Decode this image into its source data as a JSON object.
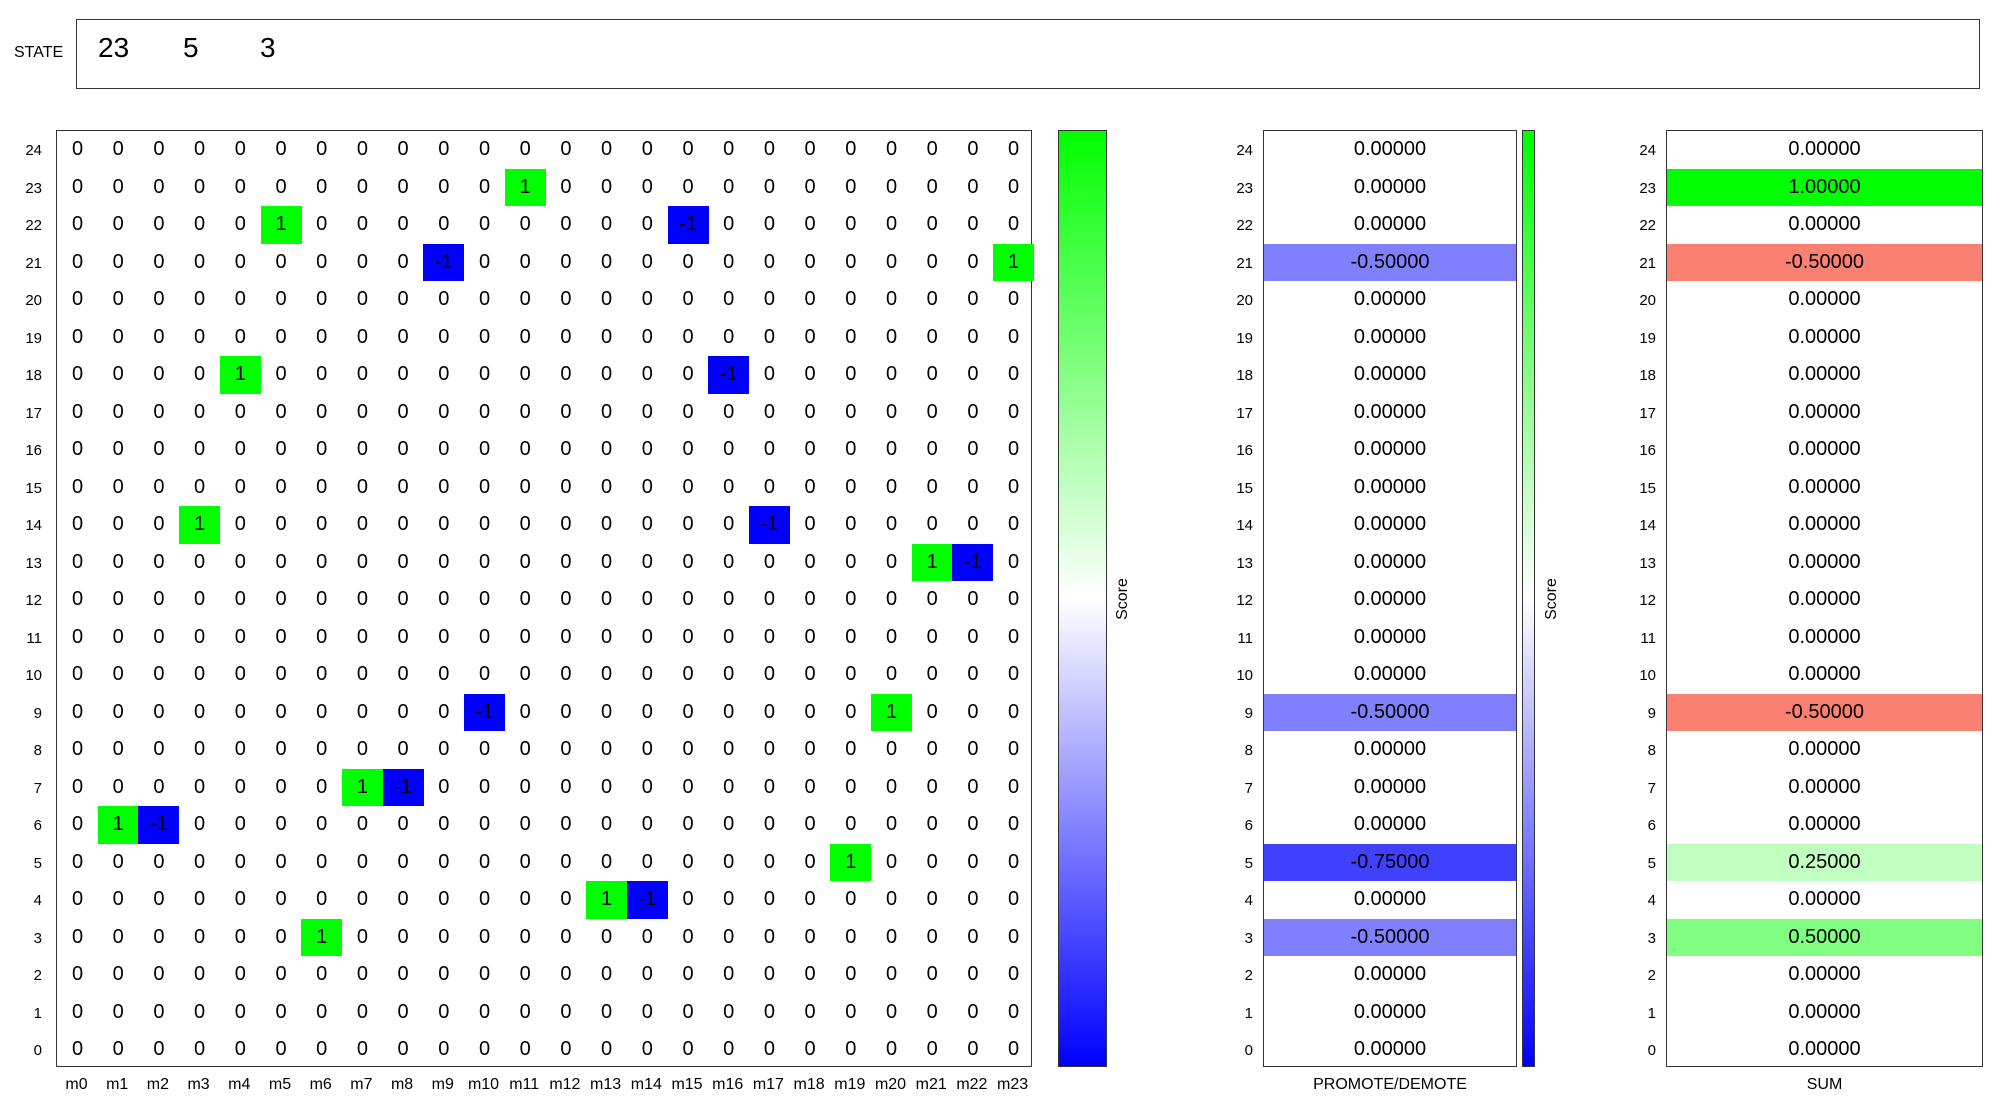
{
  "state": {
    "label": "STATE",
    "values": [
      "23",
      "5",
      "3"
    ]
  },
  "matrix": {
    "columns": [
      "m0",
      "m1",
      "m2",
      "m3",
      "m4",
      "m5",
      "m6",
      "m7",
      "m8",
      "m9",
      "m10",
      "m11",
      "m12",
      "m13",
      "m14",
      "m15",
      "m16",
      "m17",
      "m18",
      "m19",
      "m20",
      "m21",
      "m22",
      "m23"
    ],
    "rows": [
      24,
      23,
      22,
      21,
      20,
      19,
      18,
      17,
      16,
      15,
      14,
      13,
      12,
      11,
      10,
      9,
      8,
      7,
      6,
      5,
      4,
      3,
      2,
      1,
      0
    ],
    "nonzero": [
      {
        "row": 23,
        "col": 11,
        "value": 1
      },
      {
        "row": 22,
        "col": 5,
        "value": 1
      },
      {
        "row": 22,
        "col": 15,
        "value": -1
      },
      {
        "row": 21,
        "col": 9,
        "value": -1
      },
      {
        "row": 21,
        "col": 23,
        "value": 1
      },
      {
        "row": 18,
        "col": 4,
        "value": 1
      },
      {
        "row": 18,
        "col": 16,
        "value": -1
      },
      {
        "row": 14,
        "col": 3,
        "value": 1
      },
      {
        "row": 14,
        "col": 17,
        "value": -1
      },
      {
        "row": 13,
        "col": 21,
        "value": 1
      },
      {
        "row": 13,
        "col": 22,
        "value": -1
      },
      {
        "row": 9,
        "col": 10,
        "value": -1
      },
      {
        "row": 9,
        "col": 20,
        "value": 1
      },
      {
        "row": 7,
        "col": 7,
        "value": 1
      },
      {
        "row": 7,
        "col": 8,
        "value": -1
      },
      {
        "row": 6,
        "col": 1,
        "value": 1
      },
      {
        "row": 6,
        "col": 2,
        "value": -1
      },
      {
        "row": 5,
        "col": 19,
        "value": 1
      },
      {
        "row": 4,
        "col": 13,
        "value": 1
      },
      {
        "row": 4,
        "col": 14,
        "value": -1
      },
      {
        "row": 3,
        "col": 6,
        "value": 1
      }
    ],
    "colorbar_label": "Score"
  },
  "promote": {
    "title": "PROMOTE/DEMOTE",
    "colorbar_label": "Score",
    "values": {
      "24": "0.00000",
      "23": "0.00000",
      "22": "0.00000",
      "21": "-0.50000",
      "20": "0.00000",
      "19": "0.00000",
      "18": "0.00000",
      "17": "0.00000",
      "16": "0.00000",
      "15": "0.00000",
      "14": "0.00000",
      "13": "0.00000",
      "12": "0.00000",
      "11": "0.00000",
      "10": "0.00000",
      "9": "-0.50000",
      "8": "0.00000",
      "7": "0.00000",
      "6": "0.00000",
      "5": "-0.75000",
      "4": "0.00000",
      "3": "-0.50000",
      "2": "0.00000",
      "1": "0.00000",
      "0": "0.00000"
    }
  },
  "sum": {
    "title": "SUM",
    "values": {
      "24": "0.00000",
      "23": "1.00000",
      "22": "0.00000",
      "21": "-0.50000",
      "20": "0.00000",
      "19": "0.00000",
      "18": "0.00000",
      "17": "0.00000",
      "16": "0.00000",
      "15": "0.00000",
      "14": "0.00000",
      "13": "0.00000",
      "12": "0.00000",
      "11": "0.00000",
      "10": "0.00000",
      "9": "-0.50000",
      "8": "0.00000",
      "7": "0.00000",
      "6": "0.00000",
      "5": "0.25000",
      "4": "0.00000",
      "3": "0.50000",
      "2": "0.00000",
      "1": "0.00000",
      "0": "0.00000"
    }
  },
  "colors": {
    "positive": "#00ff00",
    "negative": "#0000ff",
    "promote_half": "#8080ff",
    "promote_three_quarter": "#4040ff",
    "sum_full": "#00ff00",
    "sum_half_pos": "#80ff80",
    "sum_quarter_pos": "#c0ffc0",
    "sum_neg": "#fa8072"
  }
}
